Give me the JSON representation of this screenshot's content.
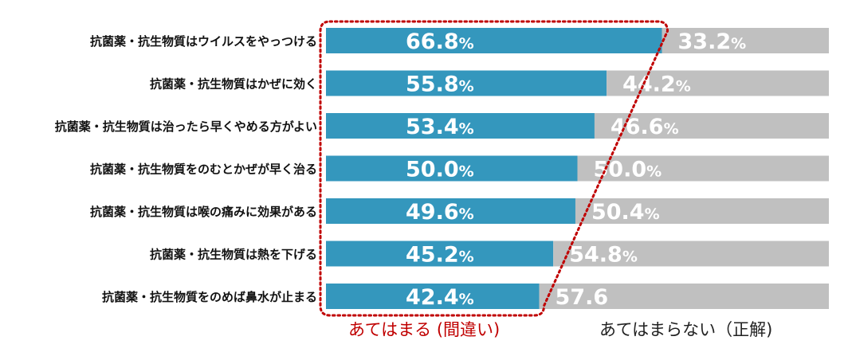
{
  "chart_data": {
    "type": "bar",
    "orientation": "horizontal",
    "stacked": true,
    "categories": [
      "抗菌薬・抗生物質はウイルスをやっつける",
      "抗菌薬・抗生物質はかぜに効く",
      "抗菌薬・抗生物質は治ったら早くやめる方がよい",
      "抗菌薬・抗生物質をのむとかぜが早く治る",
      "抗菌薬・抗生物質は喉の痛みに効果がある",
      "抗菌薬・抗生物質は熱を下げる",
      "抗菌薬・抗生物質をのめば鼻水が止まる"
    ],
    "series": [
      {
        "name": "あてはまる (間違い)",
        "values": [
          66.8,
          55.8,
          53.4,
          50.0,
          49.6,
          45.2,
          42.4
        ],
        "labels": [
          "66.8%",
          "55.8%",
          "53.4%",
          "50.0%",
          "49.6%",
          "45.2%",
          "42.4%"
        ],
        "color": "#3497bd"
      },
      {
        "name": "あてはまらない（正解)",
        "values": [
          33.2,
          44.2,
          46.6,
          50.0,
          50.4,
          54.8,
          57.6
        ],
        "labels": [
          "33.2%",
          "44.2%",
          "46.6%",
          "50.0%",
          "50.4%",
          "54.8%",
          "57.6"
        ],
        "color": "#c0c0c0"
      }
    ],
    "xlim": [
      0,
      100
    ],
    "grid": false,
    "legend": "bottom",
    "highlight_outline_color": "#c00000"
  }
}
